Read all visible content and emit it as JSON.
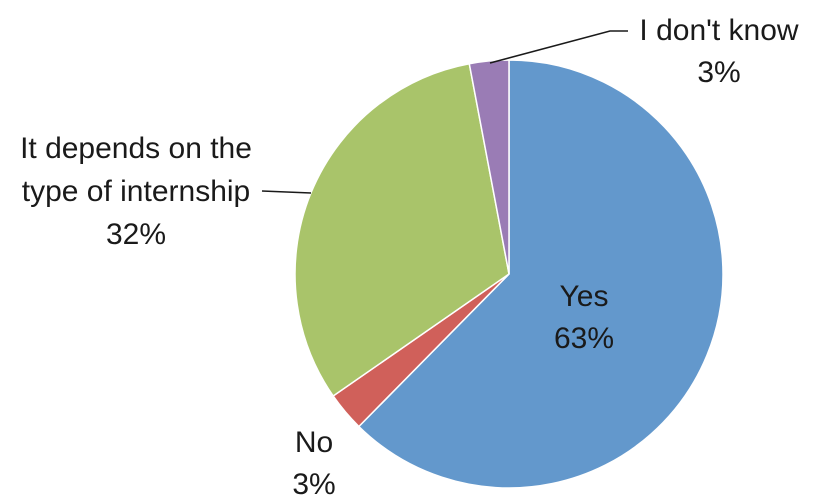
{
  "chart_data": {
    "type": "pie",
    "start_angle": "12 o'clock, clockwise",
    "slices": [
      {
        "label": "Yes",
        "value": 63,
        "value_label": "63%",
        "color": "#6398cc"
      },
      {
        "label": "No",
        "value": 3,
        "value_label": "3%",
        "color": "#d0605a"
      },
      {
        "label": "It depends on the type of internship",
        "label_lines": [
          "It depends on the",
          "type of internship"
        ],
        "value": 32,
        "value_label": "32%",
        "color": "#a9c46a"
      },
      {
        "label": "I don't know",
        "value": 3,
        "value_label": "3%",
        "color": "#9a7cb5"
      }
    ]
  }
}
